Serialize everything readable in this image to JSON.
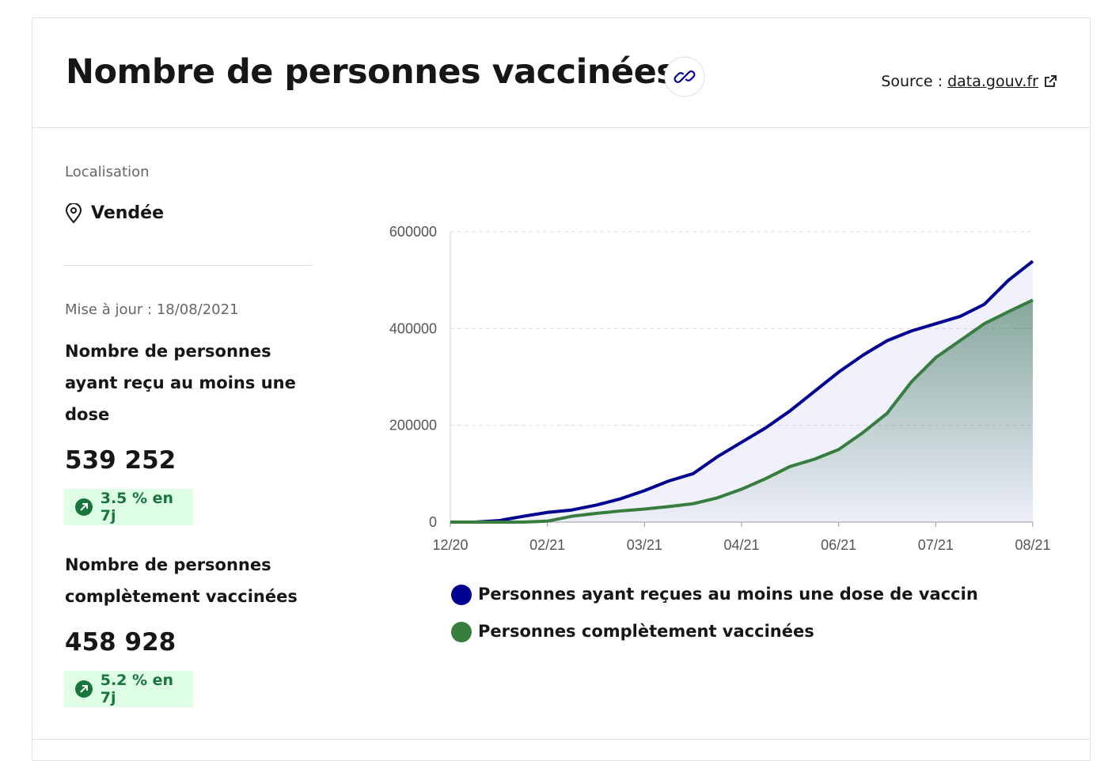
{
  "header": {
    "title": "Nombre de personnes vaccinées",
    "source_label": "Source :",
    "source_link": "data.gouv.fr"
  },
  "sidebar": {
    "location_label": "Localisation",
    "location": "Vendée",
    "updated": "Mise à jour : 18/08/2021",
    "stats": [
      {
        "label": "Nombre de personnes ayant reçu au moins une dose",
        "value": "539 252",
        "trend": "3.5 % en 7j"
      },
      {
        "label": "Nombre de personnes complètement vaccinées",
        "value": "458 928",
        "trend": "5.2 % en 7j"
      }
    ]
  },
  "chart_data": {
    "type": "line",
    "categories": [
      "12/20",
      null,
      null,
      null,
      "02/21",
      null,
      null,
      null,
      "03/21",
      null,
      null,
      null,
      "04/21",
      null,
      null,
      null,
      "06/21",
      null,
      null,
      null,
      "07/21",
      null,
      null,
      null,
      "08/21"
    ],
    "series": [
      {
        "name": "Personnes ayant reçues au moins une dose de vaccin",
        "color": "#000091",
        "values": [
          0,
          0,
          3000,
          12000,
          20000,
          25000,
          35000,
          48000,
          65000,
          85000,
          100000,
          135000,
          165000,
          195000,
          230000,
          270000,
          310000,
          345000,
          375000,
          395000,
          410000,
          425000,
          450000,
          500000,
          539252
        ]
      },
      {
        "name": "Personnes complètement vaccinées",
        "color": "#377d3f",
        "values": [
          0,
          0,
          0,
          0,
          2000,
          12000,
          18000,
          23000,
          27000,
          32000,
          38000,
          50000,
          68000,
          90000,
          115000,
          130000,
          150000,
          185000,
          225000,
          290000,
          340000,
          375000,
          410000,
          435000,
          458928
        ]
      }
    ],
    "ylim": [
      0,
      600000
    ],
    "yticks": [
      0,
      200000,
      400000,
      600000
    ],
    "grid": true
  }
}
